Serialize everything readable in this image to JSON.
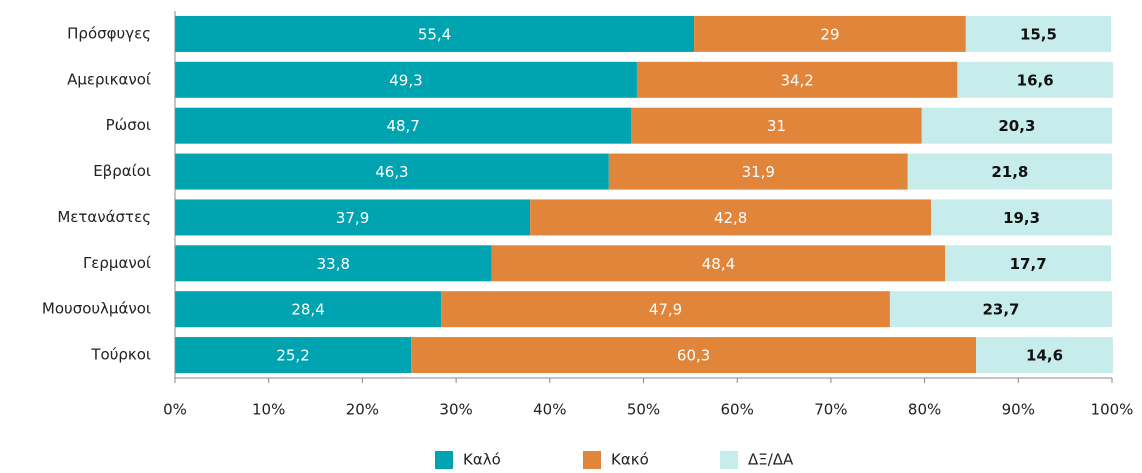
{
  "chart_data": {
    "type": "stacked_barh",
    "categories": [
      "Πρόσφυγες",
      "Αμερικανοί",
      "Ρώσοι",
      "Εβραίοι",
      "Μετανάστες",
      "Γερμανοί",
      "Μουσουλμάνοι",
      "Τούρκοι"
    ],
    "series": [
      {
        "name": "Καλό",
        "color": "#00a3b0",
        "values": [
          55.4,
          49.3,
          48.7,
          46.3,
          37.9,
          33.8,
          28.4,
          25.2
        ],
        "value_labels": [
          "55,4",
          "49,3",
          "48,7",
          "46,3",
          "37,9",
          "33,8",
          "28,4",
          "25,2"
        ]
      },
      {
        "name": "Κακό",
        "color": "#e0853a",
        "values": [
          29,
          34.2,
          31,
          31.9,
          42.8,
          48.4,
          47.9,
          60.3
        ],
        "value_labels": [
          "29",
          "34,2",
          "31",
          "31,9",
          "42,8",
          "48,4",
          "47,9",
          "60,3"
        ]
      },
      {
        "name": "ΔΞ/ΔΑ",
        "color": "#c6ecec",
        "values": [
          15.5,
          16.6,
          20.3,
          21.8,
          19.3,
          17.7,
          23.7,
          14.6
        ],
        "value_labels": [
          "15,5",
          "16,6",
          "20,3",
          "21,8",
          "19,3",
          "17,7",
          "23,7",
          "14,6"
        ]
      }
    ],
    "xlim": [
      0,
      100
    ],
    "xticks": [
      {
        "value": 0,
        "label": "0%"
      },
      {
        "value": 10,
        "label": "10%"
      },
      {
        "value": 20,
        "label": "20%"
      },
      {
        "value": 30,
        "label": "30%"
      },
      {
        "value": 40,
        "label": "40%"
      },
      {
        "value": 50,
        "label": "50%"
      },
      {
        "value": 60,
        "label": "60%"
      },
      {
        "value": 70,
        "label": "70%"
      },
      {
        "value": 80,
        "label": "80%"
      },
      {
        "value": 90,
        "label": "90%"
      },
      {
        "value": 100,
        "label": "100%"
      }
    ],
    "legend": "bottom"
  }
}
